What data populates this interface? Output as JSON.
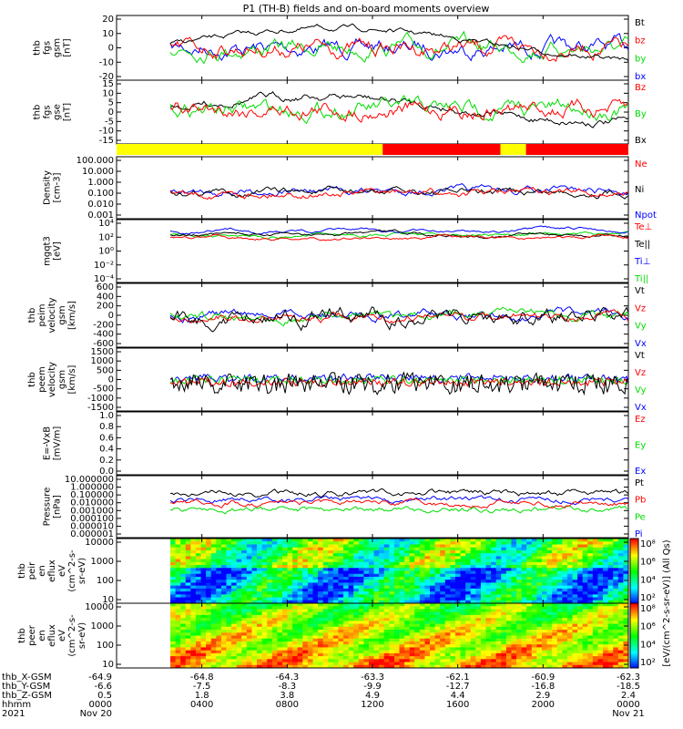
{
  "title": "P1 (TH-B) fields and on-board moments overview",
  "colors": {
    "black": "#000000",
    "red": "#ff0000",
    "green": "#00dd00",
    "blue": "#0000ff",
    "yellow": "#ffff00",
    "cyan": "#00c8ff"
  },
  "chart_data": [
    {
      "type": "line",
      "name": "fgs-gsm",
      "ylabel": [
        "thb",
        "fgs",
        "gsm",
        "[nT]"
      ],
      "yticks": [
        "20",
        "10",
        "0",
        "-10",
        "-20"
      ],
      "legend": [
        "Bt",
        "bz",
        "by",
        "bx"
      ],
      "legend_colors": [
        "black",
        "red",
        "green",
        "blue"
      ]
    },
    {
      "type": "line",
      "name": "fgs-gse",
      "ylabel": [
        "thb",
        "fgs",
        "gse",
        "[nT]"
      ],
      "yticks": [
        "15",
        "10",
        "5",
        "0",
        "-5",
        "-10",
        "-15"
      ],
      "legend": [
        "Bz",
        "By",
        "Bx"
      ],
      "legend_colors": [
        "red",
        "green",
        "black"
      ]
    },
    {
      "type": "bar",
      "name": "mode-bar",
      "segments": [
        {
          "color": "yellow",
          "from": 0.0,
          "to": 0.52
        },
        {
          "color": "red",
          "from": 0.52,
          "to": 0.75
        },
        {
          "color": "yellow",
          "from": 0.75,
          "to": 0.8
        },
        {
          "color": "red",
          "from": 0.8,
          "to": 1.0
        }
      ]
    },
    {
      "type": "line",
      "name": "density",
      "ylabel": [
        "Density",
        "[cm-3]"
      ],
      "yticks": [
        "100.000",
        "10.000",
        "1.000",
        "0.100",
        "0.010",
        "0.001"
      ],
      "legend": [
        "Ne",
        "Ni",
        "Npot"
      ],
      "legend_colors": [
        "red",
        "black",
        "blue"
      ]
    },
    {
      "type": "line",
      "name": "temperature",
      "ylabel": [
        "mgqt3",
        "[eV]"
      ],
      "yticks": [
        "10⁴",
        "10²",
        "10⁰",
        "10⁻²",
        "10⁻⁴"
      ],
      "legend": [
        "Te⊥",
        "Te||",
        "Ti⊥",
        "Ti||"
      ],
      "legend_colors": [
        "red",
        "black",
        "blue",
        "green"
      ]
    },
    {
      "type": "line",
      "name": "ion-velocity",
      "ylabel": [
        "thb",
        "peim",
        "velocity",
        "gsm",
        "[km/s]"
      ],
      "yticks": [
        "600",
        "400",
        "200",
        "0",
        "-200",
        "-400",
        "-600"
      ],
      "legend": [
        "Vt",
        "Vz",
        "Vy",
        "Vx"
      ],
      "legend_colors": [
        "black",
        "red",
        "green",
        "blue"
      ]
    },
    {
      "type": "line",
      "name": "electron-velocity",
      "ylabel": [
        "thb",
        "peem",
        "velocity",
        "gsm",
        "[km/s]"
      ],
      "yticks": [
        "1500",
        "1000",
        "500",
        "0",
        "-500",
        "-1000",
        "-1500"
      ],
      "legend": [
        "Vt",
        "Vz",
        "Vy",
        "Vx"
      ],
      "legend_colors": [
        "black",
        "red",
        "green",
        "blue"
      ]
    },
    {
      "type": "line",
      "name": "efield",
      "ylabel": [
        "E=-VxB",
        "[mV/m]"
      ],
      "yticks": [
        "1.0",
        "0.8",
        "0.6",
        "0.4",
        "0.2",
        "0.0"
      ],
      "legend": [
        "Ez",
        "Ey",
        "Ex"
      ],
      "legend_colors": [
        "red",
        "green",
        "blue"
      ]
    },
    {
      "type": "line",
      "name": "pressure",
      "ylabel": [
        "Pressure",
        "[nPa]"
      ],
      "yticks": [
        "10.000000",
        "1.000000",
        "0.100000",
        "0.010000",
        "0.001000",
        "0.000100",
        "0.000010",
        "0.000001"
      ],
      "legend": [
        "Pt",
        "Pb",
        "Pe",
        "Pi"
      ],
      "legend_colors": [
        "black",
        "red",
        "green",
        "blue"
      ]
    },
    {
      "type": "heatmap",
      "name": "ion-spectrogram",
      "ylabel": [
        "thb",
        "peir",
        "en",
        "eflux",
        "eV",
        "(cm^2-s-",
        "sr-eV)"
      ],
      "yticks": [
        "10000",
        "1000",
        "100",
        "10"
      ]
    },
    {
      "type": "heatmap",
      "name": "electron-spectrogram",
      "ylabel": [
        "thb",
        "peer",
        "en",
        "eflux",
        "eV",
        "(cm^2-s-",
        "sr-eV)"
      ],
      "yticks": [
        "10000",
        "1000",
        "100",
        "10"
      ]
    }
  ],
  "colorbar": {
    "label": "[eV/(cm^2-s-sr-eV)] (All Qs)",
    "ticks1": [
      "10⁸",
      "10⁶",
      "10⁴",
      "10²"
    ],
    "ticks2": [
      "10⁸",
      "10⁶",
      "10⁴",
      "10²"
    ]
  },
  "ephemeris": {
    "labels": [
      "thb_X-GSM",
      "thb_Y-GSM",
      "thb_Z-GSM",
      "hhmm",
      "2021"
    ],
    "x": [
      "-64.9",
      "-64.8",
      "-64.3",
      "-63.3",
      "-62.1",
      "-60.9",
      "-62.3"
    ],
    "y": [
      "-6.6",
      "-7.5",
      "-8.3",
      "-9.9",
      "-12.7",
      "-16.8",
      "-18.5"
    ],
    "z": [
      "0.5",
      "1.8",
      "3.8",
      "4.9",
      "4.4",
      "2.9",
      "2.4"
    ],
    "hhmm": [
      "0000",
      "0400",
      "0800",
      "1200",
      "1600",
      "2000",
      "0000"
    ],
    "dates": [
      "Nov 20",
      "",
      "",
      "",
      "",
      "",
      "Nov 21"
    ]
  }
}
